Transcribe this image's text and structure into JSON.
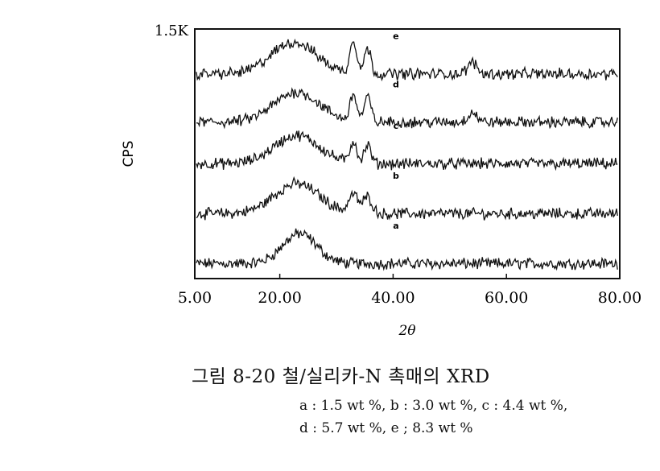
{
  "chart_data": {
    "type": "line",
    "xlabel": "2θ",
    "ylabel": "CPS",
    "xlim": [
      5,
      80
    ],
    "x_ticks": [
      "5.00",
      "20.00",
      "40.00",
      "60.00",
      "80.00"
    ],
    "x_tick_values": [
      5,
      20,
      40,
      60,
      80
    ],
    "y_top_label": "1.5K",
    "y_top_value": 1500,
    "grid": false,
    "series": [
      {
        "name": "a",
        "baseline": 90,
        "peaks": [
          {
            "center": 23.5,
            "height": 180,
            "width": 3.0
          }
        ]
      },
      {
        "name": "b",
        "baseline": 390,
        "peaks": [
          {
            "center": 23.0,
            "height": 180,
            "width": 4.0
          },
          {
            "center": 33.0,
            "height": 110,
            "width": 0.8
          },
          {
            "center": 35.5,
            "height": 100,
            "width": 0.8
          }
        ]
      },
      {
        "name": "c",
        "baseline": 690,
        "peaks": [
          {
            "center": 23.0,
            "height": 170,
            "width": 4.0
          },
          {
            "center": 33.0,
            "height": 130,
            "width": 0.6
          },
          {
            "center": 35.5,
            "height": 110,
            "width": 0.6
          }
        ]
      },
      {
        "name": "d",
        "baseline": 940,
        "peaks": [
          {
            "center": 23.0,
            "height": 180,
            "width": 4.0
          },
          {
            "center": 33.0,
            "height": 160,
            "width": 0.6
          },
          {
            "center": 35.5,
            "height": 150,
            "width": 0.6
          },
          {
            "center": 54.0,
            "height": 60,
            "width": 0.8
          }
        ]
      },
      {
        "name": "e",
        "baseline": 1230,
        "peaks": [
          {
            "center": 22.5,
            "height": 190,
            "width": 4.0
          },
          {
            "center": 33.0,
            "height": 200,
            "width": 0.6
          },
          {
            "center": 35.5,
            "height": 150,
            "width": 0.6
          },
          {
            "center": 54.0,
            "height": 70,
            "width": 0.8
          }
        ]
      }
    ]
  },
  "caption": {
    "title": "그림 8-20 철/실리카-N 촉매의 XRD",
    "line1": "a : 1.5  wt %, b : 3.0  wt %, c : 4.4  wt %,",
    "line2": "d : 5.7  wt  %, e ; 8.3  wt %"
  }
}
